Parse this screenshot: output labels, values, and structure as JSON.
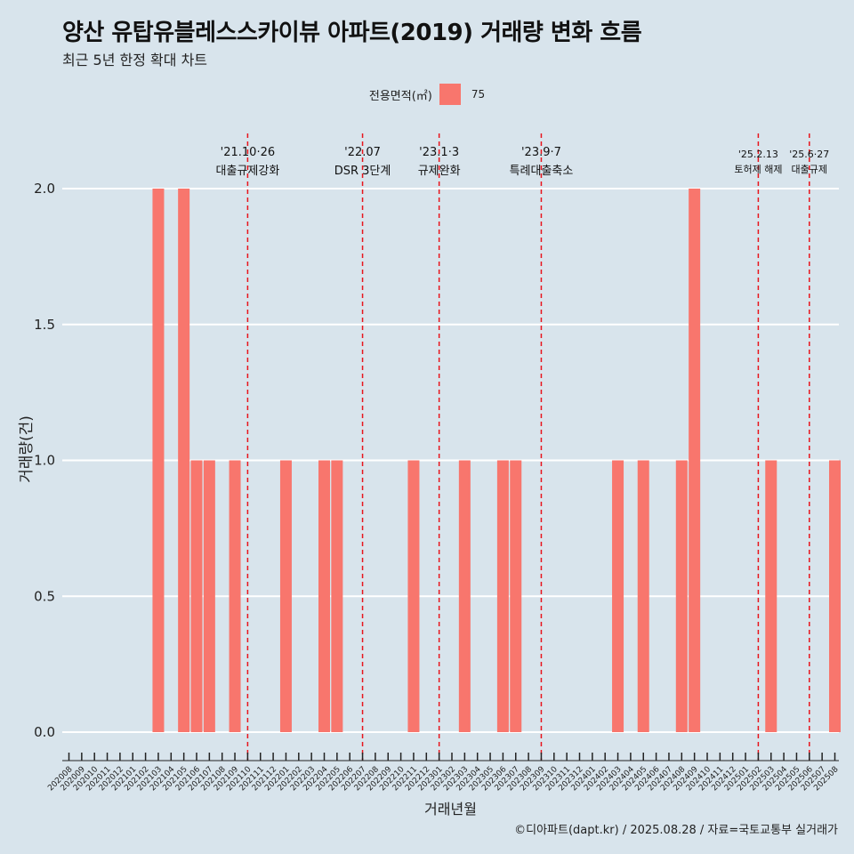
{
  "header": {
    "title": "양산 유탑유블레스스카이뷰 아파트(2019) 거래량 변화 흐름",
    "subtitle": "최근 5년 한정 확대 차트"
  },
  "legend": {
    "title": "전용면적(㎡)",
    "label": "75",
    "color": "#f8766d"
  },
  "caption": "©디아파트(dapt.kr) / 2025.08.28 / 자료=국토교통부 실거래가",
  "chart_data": {
    "type": "bar",
    "title": "양산 유탑유블레스스카이뷰 아파트(2019) 거래량 변화 흐름",
    "subtitle": "최근 5년 한정 확대 차트",
    "xlabel": "거래년월",
    "ylabel": "거래량(건)",
    "ylim": [
      0,
      2
    ],
    "yticks": [
      "0.0",
      "0.5",
      "1.0",
      "1.5",
      "2.0"
    ],
    "categories": [
      "202008",
      "202009",
      "202010",
      "202011",
      "202012",
      "202101",
      "202102",
      "202103",
      "202104",
      "202105",
      "202106",
      "202107",
      "202108",
      "202109",
      "202110",
      "202111",
      "202112",
      "202201",
      "202202",
      "202203",
      "202204",
      "202205",
      "202206",
      "202207",
      "202208",
      "202209",
      "202210",
      "202211",
      "202212",
      "202301",
      "202302",
      "202303",
      "202304",
      "202305",
      "202306",
      "202307",
      "202308",
      "202309",
      "202310",
      "202311",
      "202312",
      "202401",
      "202402",
      "202403",
      "202404",
      "202405",
      "202406",
      "202407",
      "202408",
      "202409",
      "202410",
      "202411",
      "202412",
      "202501",
      "202502",
      "202503",
      "202504",
      "202505",
      "202506",
      "202507",
      "202508"
    ],
    "series": [
      {
        "name": "75",
        "color": "#f8766d",
        "values": [
          0,
          0,
          0,
          0,
          0,
          0,
          0,
          2,
          0,
          2,
          1,
          1,
          0,
          1,
          0,
          0,
          0,
          1,
          0,
          0,
          1,
          1,
          0,
          0,
          0,
          0,
          0,
          1,
          0,
          0,
          0,
          1,
          0,
          0,
          1,
          1,
          0,
          0,
          0,
          0,
          0,
          0,
          0,
          1,
          0,
          1,
          0,
          0,
          1,
          2,
          0,
          0,
          0,
          0,
          0,
          1,
          0,
          0,
          0,
          0,
          1
        ]
      }
    ],
    "annotations": [
      {
        "category": "202110",
        "line1": "'21.10·26",
        "line2": "대출규제강화"
      },
      {
        "category": "202207",
        "line1": "'22.07",
        "line2": "DSR 3단계"
      },
      {
        "category": "202301",
        "line1": "'23.1·3",
        "line2": "규제완화"
      },
      {
        "category": "202309",
        "line1": "'23.9·7",
        "line2": "특례대출축소"
      },
      {
        "category": "202502",
        "line1": "'25.2.13",
        "line2": "토허제 해제"
      },
      {
        "category": "202506",
        "line1": "'25.6·27",
        "line2": "대출규제"
      }
    ],
    "grid": true,
    "legend_position": "top"
  }
}
